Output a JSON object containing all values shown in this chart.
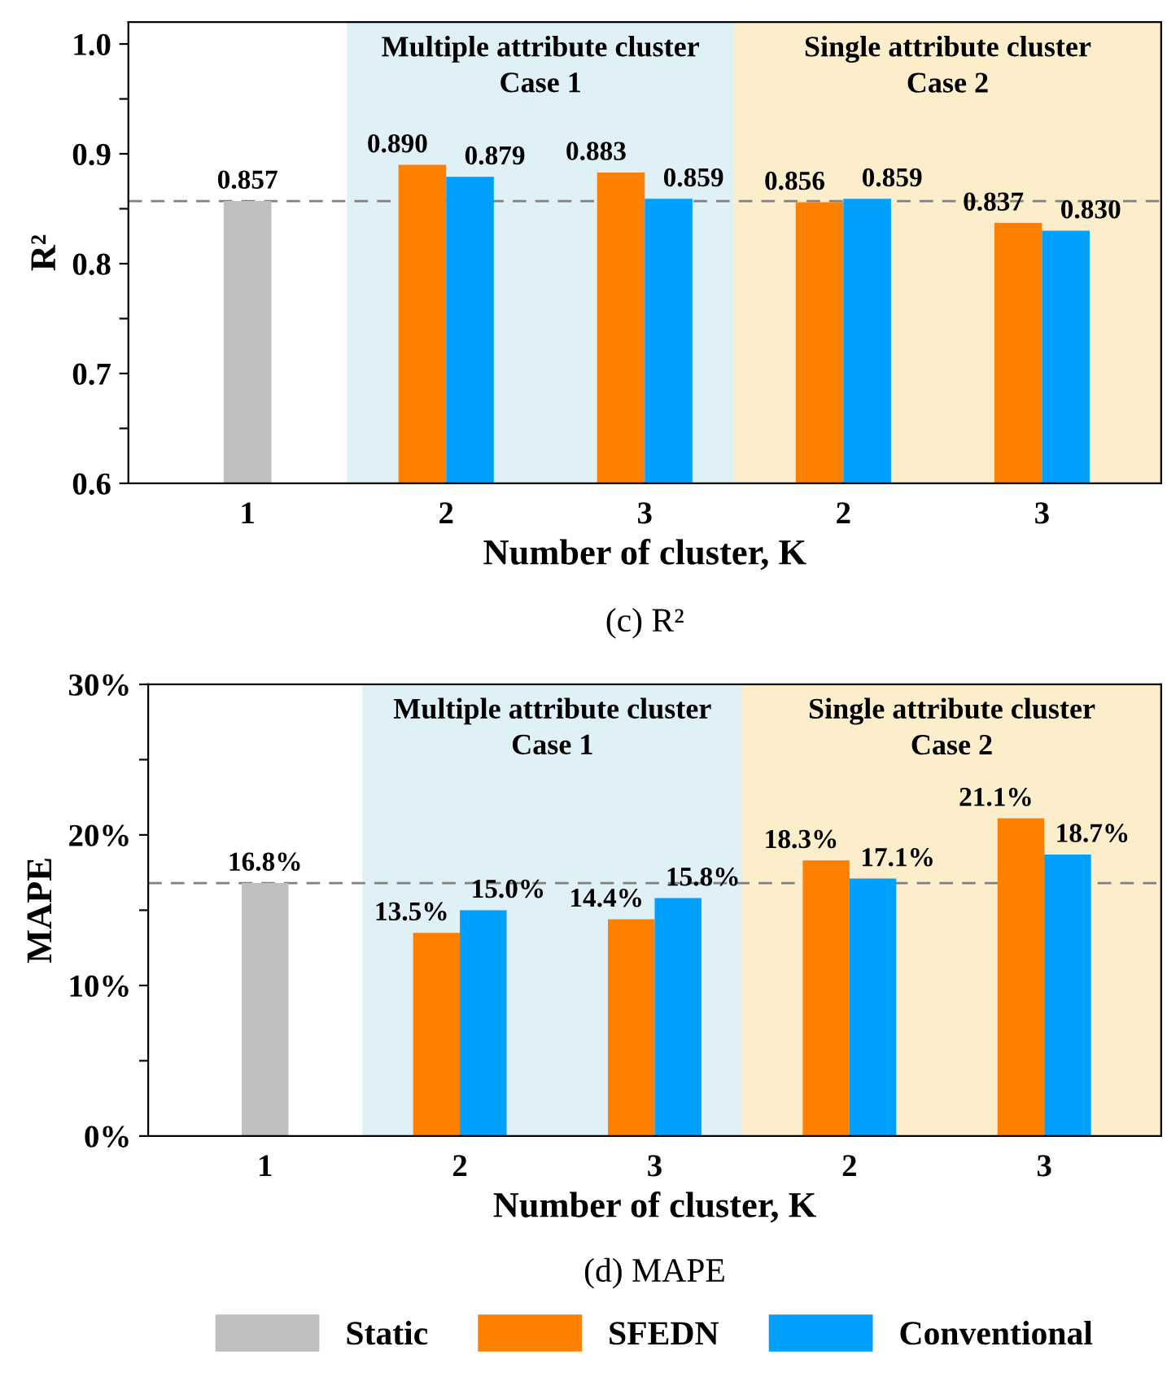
{
  "chart_data": [
    {
      "type": "bar",
      "categories": [
        "1",
        "2",
        "3",
        "2",
        "3"
      ],
      "ylabel": "R²",
      "xlabel": "Number of cluster, K",
      "series": [
        {
          "color": "#bfbfbf",
          "values": [
            0.857,
            null,
            null,
            null,
            null
          ],
          "value_labels": [
            "0.857",
            null,
            null,
            null,
            null
          ]
        },
        {
          "color": "#ff7f00",
          "values": [
            null,
            0.89,
            0.883,
            0.856,
            0.837
          ],
          "value_labels": [
            null,
            "0.890",
            "0.883",
            "0.856",
            "0.837"
          ]
        },
        {
          "color": "#00a0ff",
          "values": [
            null,
            0.879,
            0.859,
            0.859,
            0.83
          ],
          "value_labels": [
            null,
            "0.879",
            "0.859",
            "0.859",
            "0.830"
          ]
        }
      ],
      "ylim": [
        0.6,
        1.02
      ],
      "yticks": [
        "0.6",
        {
          "value": 0.65,
          "label": null
        },
        "0.7",
        {
          "value": 0.75,
          "label": null
        },
        "0.8",
        {
          "value": 0.85,
          "label": null
        },
        "0.9",
        {
          "value": 0.95,
          "label": null
        },
        "1.0"
      ],
      "ref_lines": [
        {
          "axis": "y",
          "value": 0.857,
          "color": "#808080",
          "line_style": "dashed"
        }
      ],
      "annotations": [
        "Multiple attribute cluster\nCase 1",
        "Single attribute cluster\nCase 2",
        "(c) R²"
      ]
    },
    {
      "type": "bar",
      "categories": [
        "1",
        "2",
        "3",
        "2",
        "3"
      ],
      "ylabel": "MAPE",
      "xlabel": "Number of cluster, K",
      "series": [
        {
          "name": "Static",
          "color": "#bfbfbf",
          "values": [
            16.8,
            null,
            null,
            null,
            null
          ],
          "value_labels": [
            "16.8%",
            null,
            null,
            null,
            null
          ]
        },
        {
          "name": "SFEDN",
          "color": "#ff7f00",
          "values": [
            null,
            13.5,
            14.4,
            18.3,
            21.1
          ],
          "value_labels": [
            null,
            "13.5%",
            "14.4%",
            "18.3%",
            "21.1%"
          ]
        },
        {
          "name": "Conventional",
          "color": "#00a0ff",
          "values": [
            null,
            15.0,
            15.8,
            17.1,
            18.7
          ],
          "value_labels": [
            null,
            "15.0%",
            "15.8%",
            "17.1%",
            "18.7%"
          ]
        }
      ],
      "ylim": [
        0,
        30
      ],
      "yticks": [
        {
          "value": 0,
          "label": "0%"
        },
        {
          "value": 5,
          "label": null
        },
        {
          "value": 10,
          "label": "10%"
        },
        {
          "value": 15,
          "label": null
        },
        {
          "value": 20,
          "label": "20%"
        },
        {
          "value": 25,
          "label": null
        },
        {
          "value": 30,
          "label": "30%"
        }
      ],
      "ref_lines": [
        {
          "axis": "y",
          "value": 16.8,
          "color": "#808080",
          "line_style": "dashed"
        }
      ],
      "annotations": [
        "Multiple attribute cluster\nCase 1",
        "Single attribute cluster\nCase 2",
        "(d) MAPE"
      ],
      "legend": "bottom"
    }
  ]
}
